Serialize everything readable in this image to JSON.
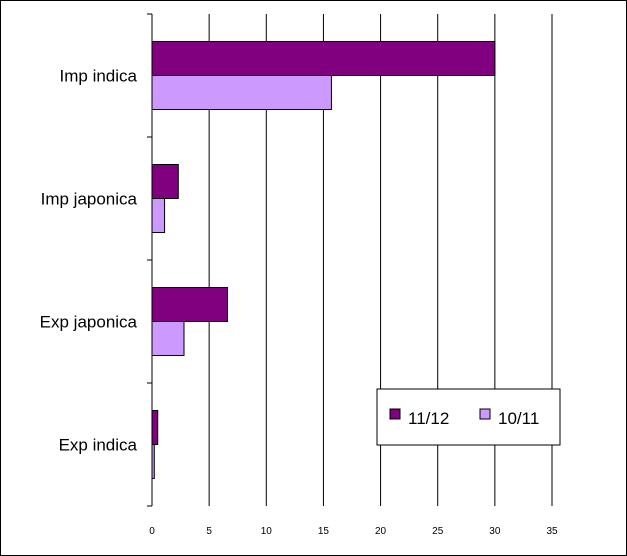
{
  "chart_data": {
    "type": "bar",
    "orientation": "horizontal",
    "title": "",
    "xlabel": "",
    "ylabel": "",
    "categories": [
      "Imp indica",
      "Imp japonica",
      "Exp japonica",
      "Exp indica"
    ],
    "series": [
      {
        "name": "11/12",
        "values": [
          30,
          2.3,
          6.6,
          0.5
        ],
        "color": "#800080"
      },
      {
        "name": "10/11",
        "values": [
          15.7,
          1.1,
          2.8,
          0.2
        ],
        "color": "#cc99ff"
      }
    ],
    "xlim": [
      0,
      35
    ],
    "xticks": [
      "0",
      "5",
      "10",
      "15",
      "20",
      "25",
      "30",
      "35"
    ],
    "grid": "vertical",
    "legend": {
      "position": "right, lower-middle"
    }
  }
}
